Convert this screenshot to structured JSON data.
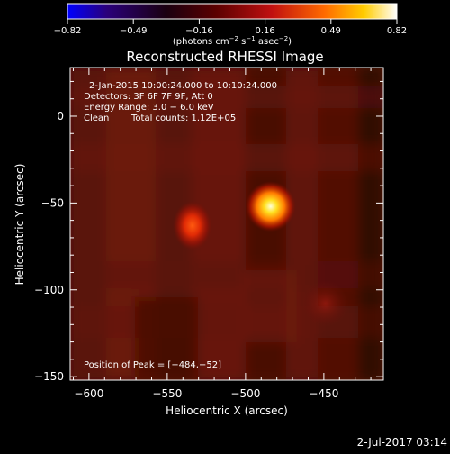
{
  "colorbar": {
    "ticks": [
      "−0.82",
      "−0.49",
      "−0.16",
      "0.16",
      "0.49",
      "0.82"
    ],
    "min": -0.82,
    "max": 0.82,
    "unit_text": "(photons cm",
    "unit_exp1": "−2",
    "unit_mid": " s",
    "unit_exp2": "−1",
    "unit_mid2": " asec",
    "unit_exp3": "−2",
    "unit_end": ")",
    "colors": [
      "#0000ff",
      "#000000",
      "#8b0000",
      "#ff3300",
      "#ffd700",
      "#ffffff"
    ]
  },
  "chart_data": {
    "type": "heatmap",
    "title": "Reconstructed RHESSI Image",
    "xlabel": "Heliocentric X (arcsec)",
    "ylabel": "Heliocentric Y (arcsec)",
    "xlim": [
      -612,
      -412
    ],
    "ylim": [
      -152,
      28
    ],
    "x_ticks": [
      -600,
      -550,
      -500,
      -450
    ],
    "y_ticks": [
      0,
      -50,
      -100,
      -150
    ],
    "x_tick_labels": [
      "−600",
      "−550",
      "−500",
      "−450"
    ],
    "y_tick_labels": [
      "0",
      "−50",
      "−100",
      "−150"
    ],
    "sources": [
      {
        "x": -484,
        "y": -52,
        "relative_intensity": 1.0
      },
      {
        "x": -534,
        "y": -63,
        "relative_intensity": 0.6
      },
      {
        "x": -449,
        "y": -108,
        "relative_intensity": 0.2
      }
    ],
    "annotations": {
      "time_range": "2-Jan-2015 10:00:24.000 to 10:10:24.000",
      "detectors": "Detectors: 3F 6F 7F 9F, Att 0",
      "energy": "Energy Range: 3.0 − 6.0 keV",
      "clean_label": "Clean",
      "total_counts": "Total counts: 1.12E+05",
      "peak": "Position of Peak = [−484,−52]"
    }
  },
  "footer": {
    "timestamp": "2-Jul-2017 03:14"
  }
}
